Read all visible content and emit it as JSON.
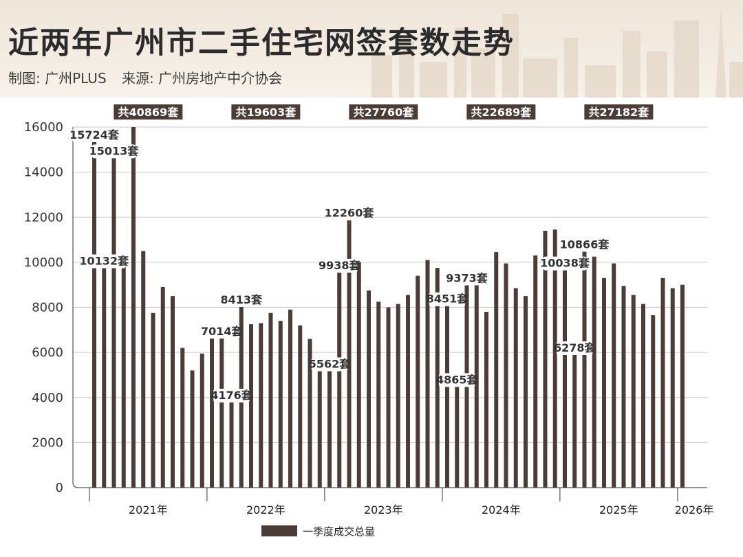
{
  "header": {
    "title": "近两年广州市二手住宅网签套数走势",
    "credit": "制图: 广州PLUS",
    "source": "来源: 广州房地产中介协会"
  },
  "chart_data": {
    "type": "bar",
    "title": "近两年广州市二手住宅网签套数走势",
    "ylim": [
      0,
      16000
    ],
    "yticks": [
      0,
      2000,
      4000,
      6000,
      8000,
      10000,
      12000,
      14000,
      16000
    ],
    "grid": true,
    "legend_position": "bottom-center",
    "colors": {
      "bar": "#4b3c36",
      "grid": "#c9c9c9",
      "header_bg": "#efe6da"
    },
    "year_labels": [
      "2021年",
      "2022年",
      "2023年",
      "2024年",
      "2025年",
      "2026年"
    ],
    "series": [
      {
        "name": "一季度成交总量",
        "values": [
          15724,
          10132,
          15013,
          10200,
          16000,
          10500,
          7750,
          8900,
          8500,
          6200,
          5200,
          5950,
          6900,
          7014,
          4176,
          8413,
          7250,
          7300,
          7750,
          7400,
          7900,
          7200,
          6600,
          5500,
          5562,
          9938,
          12260,
          10000,
          8750,
          8250,
          8000,
          8150,
          8550,
          9400,
          10100,
          9750,
          8451,
          4865,
          9373,
          9100,
          7800,
          10450,
          9950,
          8850,
          8500,
          10300,
          11400,
          11450,
          10038,
          6278,
          10866,
          10250,
          9300,
          9950,
          8950,
          8550,
          8150,
          7650,
          9300,
          8850,
          9000
        ]
      }
    ],
    "data_labels": [
      {
        "index": 0,
        "text": "15724套"
      },
      {
        "index": 1,
        "text": "10132套"
      },
      {
        "index": 2,
        "text": "15013套"
      },
      {
        "index": 13,
        "text": "7014套"
      },
      {
        "index": 14,
        "text": "4176套"
      },
      {
        "index": 15,
        "text": "8413套"
      },
      {
        "index": 24,
        "text": "5562套"
      },
      {
        "index": 25,
        "text": "9938套"
      },
      {
        "index": 26,
        "text": "12260套"
      },
      {
        "index": 36,
        "text": "8451套"
      },
      {
        "index": 37,
        "text": "4865套"
      },
      {
        "index": 38,
        "text": "9373套"
      },
      {
        "index": 48,
        "text": "10038套"
      },
      {
        "index": 49,
        "text": "6278套"
      },
      {
        "index": 50,
        "text": "10866套"
      }
    ],
    "totals": [
      {
        "text": "共40869套",
        "year": "2021年"
      },
      {
        "text": "共19603套",
        "year": "2022年"
      },
      {
        "text": "共27760套",
        "year": "2023年"
      },
      {
        "text": "共22689套",
        "year": "2024年"
      },
      {
        "text": "共27182套",
        "year": "2025年"
      }
    ]
  }
}
